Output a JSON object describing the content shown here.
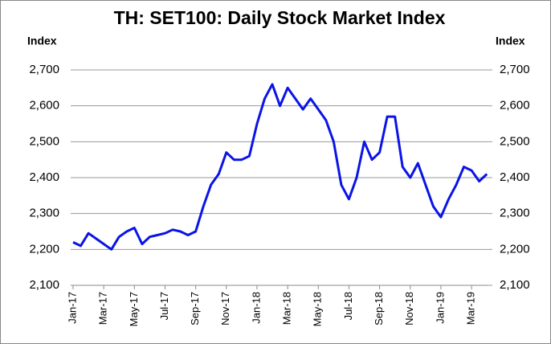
{
  "chart_data": {
    "type": "line",
    "title": "TH: SET100: Daily Stock Market Index",
    "y_label": "Index",
    "y2_label": "Index",
    "categories": [
      "Jan-17",
      null,
      null,
      null,
      "Mar-17",
      null,
      null,
      null,
      "May-17",
      null,
      null,
      null,
      "Jul-17",
      null,
      null,
      null,
      "Sep-17",
      null,
      null,
      null,
      "Nov-17",
      null,
      null,
      null,
      "Jan-18",
      null,
      null,
      null,
      "Mar-18",
      null,
      null,
      null,
      "May-18",
      null,
      null,
      null,
      "Jul-18",
      null,
      null,
      null,
      "Sep-18",
      null,
      null,
      null,
      "Nov-18",
      null,
      null,
      null,
      "Jan-19",
      null,
      null,
      null,
      "Mar-19",
      null,
      null
    ],
    "series": [
      {
        "name": "SET100",
        "color": "#0a14e6",
        "values": [
          2220,
          2210,
          2245,
          2230,
          2215,
          2200,
          2235,
          2250,
          2260,
          2215,
          2235,
          2240,
          2245,
          2255,
          2250,
          2240,
          2250,
          2320,
          2380,
          2410,
          2470,
          2450,
          2450,
          2460,
          2550,
          2620,
          2660,
          2600,
          2650,
          2620,
          2590,
          2620,
          2590,
          2560,
          2500,
          2380,
          2340,
          2400,
          2500,
          2450,
          2470,
          2570,
          2570,
          2430,
          2400,
          2440,
          2380,
          2320,
          2290,
          2340,
          2380,
          2430,
          2420,
          2390,
          2410
        ]
      }
    ],
    "ylim": [
      2100,
      2700
    ],
    "yticks": [
      {
        "value": 2100,
        "label": "2,100"
      },
      {
        "value": 2200,
        "label": "2,200"
      },
      {
        "value": 2300,
        "label": "2,300"
      },
      {
        "value": 2400,
        "label": "2,400"
      },
      {
        "value": 2500,
        "label": "2,500"
      },
      {
        "value": 2600,
        "label": "2,600"
      },
      {
        "value": 2700,
        "label": "2,700"
      }
    ],
    "y2lim": [
      2100,
      2700
    ],
    "y2ticks": [
      {
        "value": 2100,
        "label": "2,100"
      },
      {
        "value": 2200,
        "label": "2,200"
      },
      {
        "value": 2300,
        "label": "2,300"
      },
      {
        "value": 2400,
        "label": "2,400"
      },
      {
        "value": 2500,
        "label": "2,500"
      },
      {
        "value": 2600,
        "label": "2,600"
      },
      {
        "value": 2700,
        "label": "2,700"
      }
    ],
    "grid": true
  }
}
